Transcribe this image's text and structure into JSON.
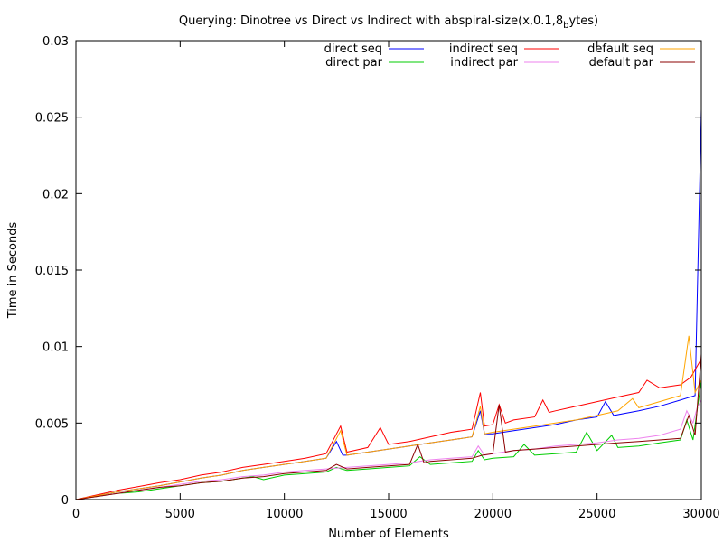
{
  "chart_data": {
    "type": "line",
    "title_main": "Querying: Dinotree vs Direct vs Indirect with abspiral-size(x,0.1,8",
    "title_sub": "b",
    "title_tail": "ytes)",
    "xlabel": "Number of Elements",
    "ylabel": "Time in Seconds",
    "xlim": [
      0,
      30000
    ],
    "ylim": [
      0,
      0.03
    ],
    "xticks": [
      0,
      5000,
      10000,
      15000,
      20000,
      25000,
      30000
    ],
    "xtick_labels": [
      "0",
      "5000",
      "10000",
      "15000",
      "20000",
      "25000",
      "30000"
    ],
    "yticks": [
      0,
      0.005,
      0.01,
      0.015,
      0.02,
      0.025,
      0.03
    ],
    "ytick_labels": [
      "0",
      "0.005",
      "0.01",
      "0.015",
      "0.02",
      "0.025",
      "0.03"
    ],
    "grid": false,
    "legend_position": "top-right",
    "series": [
      {
        "name": "direct seq",
        "color": "#0000ff",
        "points": [
          [
            0,
            0
          ],
          [
            1000,
            0.00025
          ],
          [
            2000,
            0.0005
          ],
          [
            3000,
            0.0007
          ],
          [
            4000,
            0.0009
          ],
          [
            5000,
            0.00115
          ],
          [
            6000,
            0.0014
          ],
          [
            7000,
            0.0016
          ],
          [
            8000,
            0.0019
          ],
          [
            9000,
            0.0021
          ],
          [
            10000,
            0.0023
          ],
          [
            11000,
            0.0025
          ],
          [
            12000,
            0.0027
          ],
          [
            12500,
            0.0038
          ],
          [
            12800,
            0.0029
          ],
          [
            13000,
            0.0029
          ],
          [
            14000,
            0.0031
          ],
          [
            15000,
            0.0033
          ],
          [
            16000,
            0.0035
          ],
          [
            17000,
            0.0037
          ],
          [
            18000,
            0.0039
          ],
          [
            19000,
            0.0041
          ],
          [
            19400,
            0.0058
          ],
          [
            19600,
            0.0043
          ],
          [
            20000,
            0.0043
          ],
          [
            21000,
            0.0045
          ],
          [
            22000,
            0.0047
          ],
          [
            23000,
            0.0049
          ],
          [
            24000,
            0.0052
          ],
          [
            25000,
            0.0054
          ],
          [
            25400,
            0.0064
          ],
          [
            25800,
            0.0055
          ],
          [
            27000,
            0.0058
          ],
          [
            28000,
            0.0061
          ],
          [
            29000,
            0.0065
          ],
          [
            29700,
            0.0068
          ],
          [
            30000,
            0.0255
          ]
        ]
      },
      {
        "name": "direct par",
        "color": "#00cc00",
        "points": [
          [
            0,
            0
          ],
          [
            1000,
            0.0002
          ],
          [
            2000,
            0.0004
          ],
          [
            3000,
            0.0005
          ],
          [
            4000,
            0.0007
          ],
          [
            5000,
            0.0009
          ],
          [
            6000,
            0.0011
          ],
          [
            7000,
            0.0012
          ],
          [
            8000,
            0.0014
          ],
          [
            8500,
            0.0015
          ],
          [
            9000,
            0.0013
          ],
          [
            10000,
            0.0016
          ],
          [
            11000,
            0.0017
          ],
          [
            12000,
            0.0018
          ],
          [
            12500,
            0.0021
          ],
          [
            13000,
            0.0019
          ],
          [
            14000,
            0.002
          ],
          [
            15000,
            0.0021
          ],
          [
            16000,
            0.0022
          ],
          [
            16500,
            0.0028
          ],
          [
            17000,
            0.0023
          ],
          [
            18000,
            0.0024
          ],
          [
            19000,
            0.0025
          ],
          [
            19300,
            0.0032
          ],
          [
            19600,
            0.0026
          ],
          [
            20000,
            0.0027
          ],
          [
            21000,
            0.0028
          ],
          [
            21500,
            0.0036
          ],
          [
            22000,
            0.0029
          ],
          [
            23000,
            0.003
          ],
          [
            24000,
            0.0031
          ],
          [
            24500,
            0.0044
          ],
          [
            25000,
            0.0032
          ],
          [
            25700,
            0.0042
          ],
          [
            26000,
            0.0034
          ],
          [
            27000,
            0.0035
          ],
          [
            28000,
            0.0037
          ],
          [
            29000,
            0.0039
          ],
          [
            29300,
            0.0052
          ],
          [
            29600,
            0.0039
          ],
          [
            30000,
            0.0078
          ]
        ]
      },
      {
        "name": "indirect seq",
        "color": "#ff0000",
        "points": [
          [
            0,
            0
          ],
          [
            1000,
            0.0003
          ],
          [
            2000,
            0.0006
          ],
          [
            3000,
            0.00085
          ],
          [
            4000,
            0.0011
          ],
          [
            5000,
            0.0013
          ],
          [
            6000,
            0.0016
          ],
          [
            7000,
            0.0018
          ],
          [
            8000,
            0.0021
          ],
          [
            9000,
            0.0023
          ],
          [
            10000,
            0.0025
          ],
          [
            11000,
            0.0027
          ],
          [
            12000,
            0.003
          ],
          [
            12700,
            0.0048
          ],
          [
            13000,
            0.0031
          ],
          [
            14000,
            0.0034
          ],
          [
            14600,
            0.0047
          ],
          [
            15000,
            0.0036
          ],
          [
            16000,
            0.0038
          ],
          [
            17000,
            0.0041
          ],
          [
            18000,
            0.0044
          ],
          [
            19000,
            0.0046
          ],
          [
            19400,
            0.007
          ],
          [
            19600,
            0.0048
          ],
          [
            20000,
            0.0049
          ],
          [
            20300,
            0.0062
          ],
          [
            20600,
            0.005
          ],
          [
            21000,
            0.0052
          ],
          [
            22000,
            0.0054
          ],
          [
            22400,
            0.0065
          ],
          [
            22700,
            0.0057
          ],
          [
            23000,
            0.0058
          ],
          [
            24000,
            0.0061
          ],
          [
            25000,
            0.0064
          ],
          [
            26000,
            0.0067
          ],
          [
            27000,
            0.007
          ],
          [
            27400,
            0.0078
          ],
          [
            28000,
            0.0073
          ],
          [
            29000,
            0.0075
          ],
          [
            29500,
            0.008
          ],
          [
            30000,
            0.0092
          ]
        ]
      },
      {
        "name": "indirect par",
        "color": "#ee82ee",
        "points": [
          [
            0,
            0
          ],
          [
            1000,
            0.0002
          ],
          [
            2000,
            0.0004
          ],
          [
            3000,
            0.0006
          ],
          [
            4000,
            0.0008
          ],
          [
            5000,
            0.001
          ],
          [
            6000,
            0.0012
          ],
          [
            7000,
            0.0013
          ],
          [
            8000,
            0.0015
          ],
          [
            9000,
            0.0016
          ],
          [
            10000,
            0.0018
          ],
          [
            11000,
            0.0019
          ],
          [
            12000,
            0.002
          ],
          [
            13000,
            0.0021
          ],
          [
            14000,
            0.0022
          ],
          [
            15000,
            0.0023
          ],
          [
            16000,
            0.0024
          ],
          [
            17000,
            0.0026
          ],
          [
            18000,
            0.0027
          ],
          [
            19000,
            0.0028
          ],
          [
            19300,
            0.0035
          ],
          [
            19600,
            0.0029
          ],
          [
            20000,
            0.003
          ],
          [
            21000,
            0.0032
          ],
          [
            22000,
            0.0033
          ],
          [
            23000,
            0.0035
          ],
          [
            24000,
            0.0036
          ],
          [
            25000,
            0.0037
          ],
          [
            26000,
            0.0039
          ],
          [
            27000,
            0.004
          ],
          [
            28000,
            0.0042
          ],
          [
            29000,
            0.0046
          ],
          [
            29300,
            0.0058
          ],
          [
            29600,
            0.005
          ],
          [
            29800,
            0.006
          ],
          [
            30000,
            0.0065
          ]
        ]
      },
      {
        "name": "default seq",
        "color": "#ffa500",
        "points": [
          [
            0,
            0
          ],
          [
            1000,
            0.00025
          ],
          [
            2000,
            0.0005
          ],
          [
            3000,
            0.0007
          ],
          [
            4000,
            0.0009
          ],
          [
            5000,
            0.00115
          ],
          [
            6000,
            0.0014
          ],
          [
            7000,
            0.0016
          ],
          [
            8000,
            0.0019
          ],
          [
            9000,
            0.0021
          ],
          [
            10000,
            0.0023
          ],
          [
            11000,
            0.0025
          ],
          [
            12000,
            0.0027
          ],
          [
            12700,
            0.0045
          ],
          [
            13000,
            0.0029
          ],
          [
            14000,
            0.0031
          ],
          [
            15000,
            0.0033
          ],
          [
            16000,
            0.0035
          ],
          [
            17000,
            0.0037
          ],
          [
            18000,
            0.0039
          ],
          [
            19000,
            0.0041
          ],
          [
            19400,
            0.0061
          ],
          [
            19600,
            0.0043
          ],
          [
            20000,
            0.0044
          ],
          [
            21000,
            0.0046
          ],
          [
            22000,
            0.0048
          ],
          [
            23000,
            0.005
          ],
          [
            24000,
            0.0052
          ],
          [
            25000,
            0.0055
          ],
          [
            26000,
            0.0058
          ],
          [
            26700,
            0.0066
          ],
          [
            27000,
            0.006
          ],
          [
            28000,
            0.0064
          ],
          [
            29000,
            0.0068
          ],
          [
            29400,
            0.0107
          ],
          [
            29700,
            0.007
          ],
          [
            30000,
            0.0078
          ]
        ]
      },
      {
        "name": "default par",
        "color": "#8b0000",
        "points": [
          [
            0,
            0
          ],
          [
            1000,
            0.0002
          ],
          [
            2000,
            0.0004
          ],
          [
            3000,
            0.0006
          ],
          [
            4000,
            0.0008
          ],
          [
            5000,
            0.0009
          ],
          [
            6000,
            0.0011
          ],
          [
            7000,
            0.0012
          ],
          [
            8000,
            0.0014
          ],
          [
            9000,
            0.0015
          ],
          [
            10000,
            0.0017
          ],
          [
            11000,
            0.0018
          ],
          [
            12000,
            0.0019
          ],
          [
            12500,
            0.0023
          ],
          [
            13000,
            0.002
          ],
          [
            14000,
            0.0021
          ],
          [
            15000,
            0.0022
          ],
          [
            16000,
            0.0023
          ],
          [
            16400,
            0.0036
          ],
          [
            16700,
            0.0024
          ],
          [
            17000,
            0.0025
          ],
          [
            18000,
            0.0026
          ],
          [
            19000,
            0.0027
          ],
          [
            19500,
            0.0029
          ],
          [
            20000,
            0.003
          ],
          [
            20300,
            0.0062
          ],
          [
            20600,
            0.0031
          ],
          [
            21000,
            0.0032
          ],
          [
            22000,
            0.0033
          ],
          [
            23000,
            0.0034
          ],
          [
            24000,
            0.0035
          ],
          [
            25000,
            0.0036
          ],
          [
            26000,
            0.0037
          ],
          [
            27000,
            0.0038
          ],
          [
            28000,
            0.0039
          ],
          [
            29000,
            0.004
          ],
          [
            29400,
            0.0055
          ],
          [
            29700,
            0.0042
          ],
          [
            30000,
            0.0095
          ]
        ]
      }
    ]
  }
}
